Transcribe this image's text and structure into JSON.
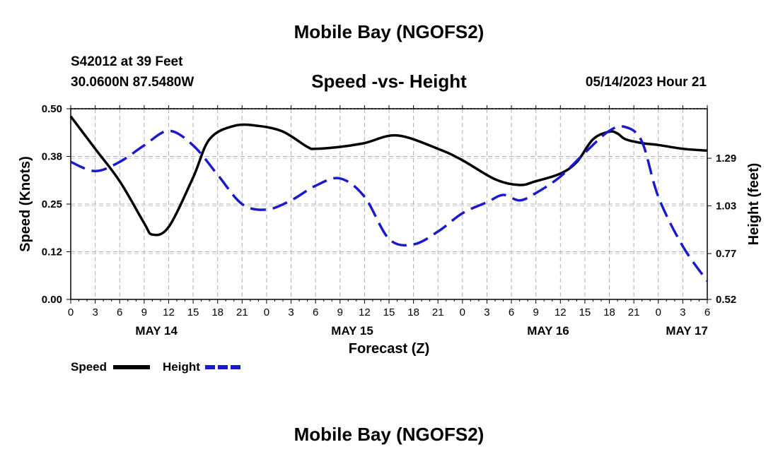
{
  "header": {
    "title": "Mobile Bay (NGOFS2)",
    "station": "S42012 at 39 Feet",
    "coords": "30.0600N  87.5480W",
    "subtitle": "Speed -vs- Height",
    "datetime": "05/14/2023 Hour 21"
  },
  "footer": {
    "title": "Mobile Bay (NGOFS2)"
  },
  "chart_data": {
    "type": "line",
    "title": "Speed -vs- Height",
    "xlabel": "Forecast (Z)",
    "ylabel": "Speed (Knots)",
    "y2label": "Height (feet)",
    "xlim": [
      0,
      78
    ],
    "ylim": [
      0,
      0.5
    ],
    "y2lim": [
      0.52,
      1.56
    ],
    "x_tick_labels": [
      "0",
      "3",
      "6",
      "9",
      "12",
      "15",
      "18",
      "21",
      "0",
      "3",
      "6",
      "9",
      "12",
      "15",
      "18",
      "21",
      "0",
      "3",
      "6",
      "9",
      "12",
      "15",
      "18",
      "21",
      "0",
      "3",
      "6"
    ],
    "day_labels": [
      {
        "label": "MAY 14",
        "x": 10.5
      },
      {
        "label": "MAY 15",
        "x": 34.5
      },
      {
        "label": "MAY 16",
        "x": 58.5
      },
      {
        "label": "MAY 17",
        "x": 75.5
      }
    ],
    "y_ticks": [
      {
        "value": 0.0,
        "label": "0.00"
      },
      {
        "value": 0.125,
        "label": "0.12"
      },
      {
        "value": 0.25,
        "label": "0.25"
      },
      {
        "value": 0.375,
        "label": "0.38"
      },
      {
        "value": 0.5,
        "label": "0.50"
      }
    ],
    "y2_ticks": [
      {
        "value": 0.52,
        "label": "0.52"
      },
      {
        "value": 0.77,
        "label": "0.77"
      },
      {
        "value": 1.03,
        "label": "1.03"
      },
      {
        "value": 1.29,
        "label": "1.29"
      }
    ],
    "series": [
      {
        "name": "Speed",
        "axis": "left",
        "color": "#000000",
        "style": "solid",
        "x": [
          0,
          3,
          6,
          9,
          10,
          12,
          15,
          17,
          20,
          23,
          26,
          29,
          30,
          33,
          36,
          40,
          45,
          48,
          52,
          55,
          57,
          60,
          62,
          64,
          66,
          67,
          68,
          70,
          72,
          75,
          78
        ],
        "values": [
          0.48,
          0.395,
          0.31,
          0.2,
          0.17,
          0.19,
          0.32,
          0.42,
          0.455,
          0.455,
          0.44,
          0.4,
          0.395,
          0.4,
          0.41,
          0.43,
          0.395,
          0.365,
          0.315,
          0.3,
          0.31,
          0.33,
          0.36,
          0.42,
          0.44,
          0.435,
          0.42,
          0.41,
          0.405,
          0.395,
          0.39
        ]
      },
      {
        "name": "Height",
        "axis": "right",
        "color": "#1a1acc",
        "style": "dashed",
        "x": [
          0,
          3,
          6,
          9,
          12,
          15,
          18,
          21,
          24,
          27,
          30,
          33,
          36,
          39,
          42,
          45,
          48,
          51,
          53,
          55,
          57,
          60,
          63,
          66,
          68,
          70,
          72,
          75,
          78
        ],
        "values": [
          1.27,
          1.22,
          1.27,
          1.36,
          1.44,
          1.36,
          1.2,
          1.04,
          1.01,
          1.06,
          1.14,
          1.18,
          1.08,
          0.85,
          0.82,
          0.89,
          0.99,
          1.05,
          1.09,
          1.06,
          1.1,
          1.19,
          1.32,
          1.44,
          1.46,
          1.38,
          1.08,
          0.81,
          0.62
        ]
      }
    ],
    "legend": [
      {
        "label": "Speed",
        "color": "#000000",
        "style": "solid"
      },
      {
        "label": "Height",
        "color": "#1a1acc",
        "style": "dashed"
      }
    ],
    "grid": true
  }
}
